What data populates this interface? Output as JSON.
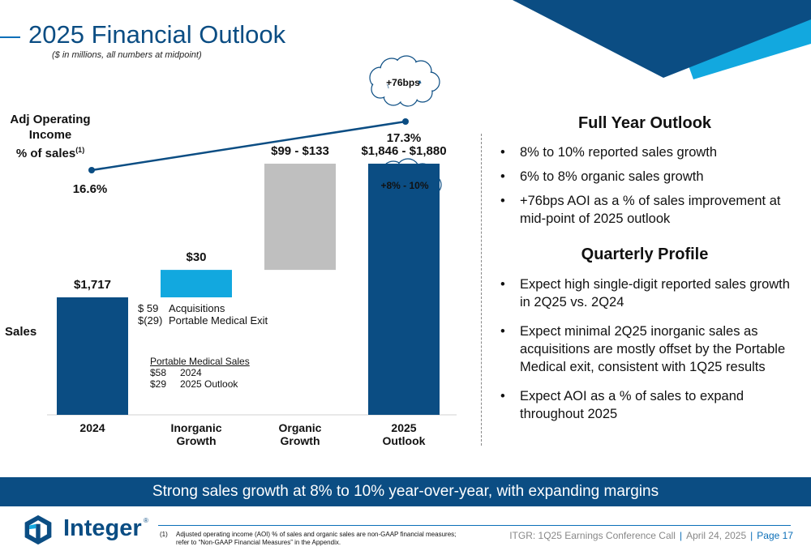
{
  "header": {
    "title": "2025 Financial Outlook",
    "subtitle": "($ in millions, all numbers at midpoint)"
  },
  "chart_data": {
    "type": "bar",
    "subtype": "waterfall",
    "categories": [
      "2024",
      "Inorganic Growth",
      "Organic Growth",
      "2025 Outlook"
    ],
    "category_lines": [
      [
        "2024"
      ],
      [
        "Inorganic",
        "Growth"
      ],
      [
        "Organic",
        "Growth"
      ],
      [
        "2025",
        "Outlook"
      ]
    ],
    "sales_label": "Sales",
    "bars": [
      {
        "category": "2024",
        "base": 0,
        "value": 1717,
        "label": "$1,717",
        "color": "#0b4d83"
      },
      {
        "category": "Inorganic Growth",
        "base": 1717,
        "value": 30,
        "label": "$30",
        "color": "#12a8df"
      },
      {
        "category": "Organic Growth",
        "base": 1747,
        "value": 116,
        "label": "$99 - $133",
        "color": "#bfbfbf"
      },
      {
        "category": "2025 Outlook",
        "base": 0,
        "value": 1863,
        "label": "$1,846 - $1,880",
        "color": "#0b4d83"
      }
    ],
    "aoi": {
      "label_lines": [
        "Adj Operating",
        "Income",
        "% of sales"
      ],
      "label_superscript": "(1)",
      "points": [
        {
          "x": "2024",
          "y": 16.6,
          "label": "16.6%"
        },
        {
          "x": "2025 Outlook",
          "y": 17.3,
          "label": "17.3%"
        }
      ],
      "color": "#0b4d83"
    },
    "callouts": [
      {
        "text": "+76bps"
      },
      {
        "text": "+8% - 10%"
      }
    ],
    "inorganic_breakdown": [
      {
        "amount": "$ 59",
        "desc": "Acquisitions"
      },
      {
        "amount": "$(29)",
        "desc": "Portable Medical Exit"
      }
    ],
    "portable_medical": {
      "title": "Portable Medical Sales",
      "rows": [
        {
          "amount": "$58",
          "desc": "2024"
        },
        {
          "amount": "$29",
          "desc": "2025 Outlook"
        }
      ]
    }
  },
  "full_year": {
    "heading": "Full Year Outlook",
    "bullets": [
      "8% to 10% reported sales growth",
      "6% to 8% organic sales growth",
      "+76bps AOI as a % of sales improvement at mid-point of 2025 outlook"
    ]
  },
  "quarterly": {
    "heading": "Quarterly Profile",
    "bullets": [
      "Expect high single-digit reported sales growth in 2Q25 vs. 2Q24",
      "Expect minimal 2Q25 inorganic sales as acquisitions are mostly offset by the Portable Medical exit, consistent with 1Q25 results",
      "Expect AOI as a % of sales to expand throughout 2025"
    ]
  },
  "banner": {
    "text": "Strong sales growth at 8% to 10% year-over-year, with expanding margins"
  },
  "brand": {
    "name": "Integer",
    "reg": "®",
    "primary": "#0b4d83",
    "accent": "#12a8df"
  },
  "footnote": {
    "num": "(1)",
    "text": "Adjusted operating income (AOI) % of sales and organic sales are non-GAAP financial measures; refer to “Non-GAAP Financial Measures” in the Appendix."
  },
  "footer": {
    "event": "ITGR: 1Q25 Earnings Conference Call",
    "date": "April 24, 2025",
    "page": "Page 17"
  }
}
